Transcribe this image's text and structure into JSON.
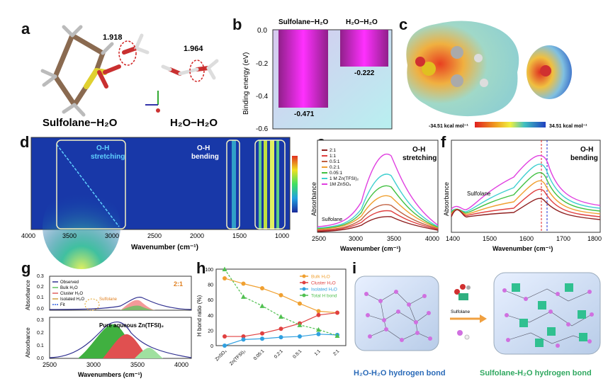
{
  "panel_letters": {
    "a": "a",
    "b": "b",
    "c": "c",
    "d": "d",
    "e": "e",
    "f": "f",
    "g": "g",
    "h": "h",
    "i": "i"
  },
  "panel_a": {
    "dist1": "1.918",
    "dist2": "1.964",
    "label1": "Sulfolane−H₂O",
    "label2": "H₂O−H₂O"
  },
  "panel_b": {
    "ylabel": "Binding energy (eV)",
    "series_labels": [
      "Sulfolane−H₂O",
      "H₂O−H₂O"
    ],
    "value_labels": [
      "-0.471",
      "-0.222"
    ],
    "ticks": [
      "0.0",
      "-0.2",
      "-0.4",
      "-0.6"
    ]
  },
  "panel_c": {
    "min_label": "-34.51 kcal mol⁻¹",
    "max_label": "34.51 kcal mol⁻¹"
  },
  "panel_d": {
    "oh_stretch": "O-H",
    "oh_stretch2": "stretching",
    "oh_bend": "O-H",
    "oh_bend2": "bending",
    "xlabel": "Wavenumber (cm⁻¹)",
    "xticks": [
      "4000",
      "3500",
      "3000",
      "2500",
      "2000",
      "1500",
      "1000"
    ]
  },
  "panel_e": {
    "legend": [
      "2:1",
      "1:1",
      "0.5:1",
      "0.2:1",
      "0.05:1",
      "1 M Zn(TFSI)₂",
      "1M ZnSO₄"
    ],
    "title1": "O-H",
    "title2": "stretching",
    "sulfolane": "Sulfolane",
    "ylabel": "Absorbance",
    "xlabel": "Wavenumber (cm⁻¹)",
    "xticks": [
      "2500",
      "3000",
      "3500",
      "4000"
    ]
  },
  "panel_f": {
    "title1": "O-H",
    "title2": "bending",
    "sulfolane": "Sulfolane",
    "ylabel": "Absorbance",
    "xlabel": "Wavenumber (cm⁻¹)",
    "xticks": [
      "1400",
      "1500",
      "1600",
      "1700",
      "1800"
    ]
  },
  "panel_g": {
    "legend": [
      "Observed",
      "Bulk H₂O",
      "Cluster H₂O",
      "Isolated H₂O",
      "Fit"
    ],
    "ratio": "2:1",
    "sulfolane": "Sulfolane",
    "subtitle": "Pure aqueous Zn(TFSI)₂",
    "ylabel": "Absorbance",
    "xlabel": "Wavenumbers (cm⁻¹)",
    "yticks_top": [
      "0.3",
      "0.2",
      "0.1",
      "0.0"
    ],
    "yticks_bot": [
      "0.3",
      "0.2",
      "0.1",
      "0.0"
    ],
    "xticks": [
      "2500",
      "3000",
      "3500",
      "4000"
    ]
  },
  "chart_data": {
    "type": "line",
    "categories": [
      "ZnSO₄",
      "Zn(TFSI)₂",
      "0.05:1",
      "0.2:1",
      "0.5:1",
      "1:1",
      "2:1"
    ],
    "ylabel": "H bond ratio (%)",
    "ylim": [
      0,
      100
    ],
    "yticks": [
      "0",
      "20",
      "40",
      "60",
      "80",
      "100"
    ],
    "series": [
      {
        "name": "Bulk H₂O",
        "color": "#f0a030",
        "values": [
          88,
          81,
          75,
          66,
          55,
          45,
          43
        ]
      },
      {
        "name": "Cluster H₂O",
        "color": "#e04040",
        "values": [
          12,
          12,
          16,
          22,
          29,
          40,
          43
        ]
      },
      {
        "name": "Isolated H₂O",
        "color": "#30a0e0",
        "values": [
          0,
          8,
          9,
          11,
          12,
          15,
          14
        ]
      },
      {
        "name": "Total H bond",
        "color": "#50c050",
        "values": [
          100,
          64,
          52,
          38,
          27,
          21,
          13
        ]
      }
    ]
  },
  "panel_i": {
    "mid_label": "Sulfolane",
    "left_caption": "H₂O-H₂O hydrogen bond",
    "right_caption": "Sulfolane-H₂O hydrogen bond"
  }
}
